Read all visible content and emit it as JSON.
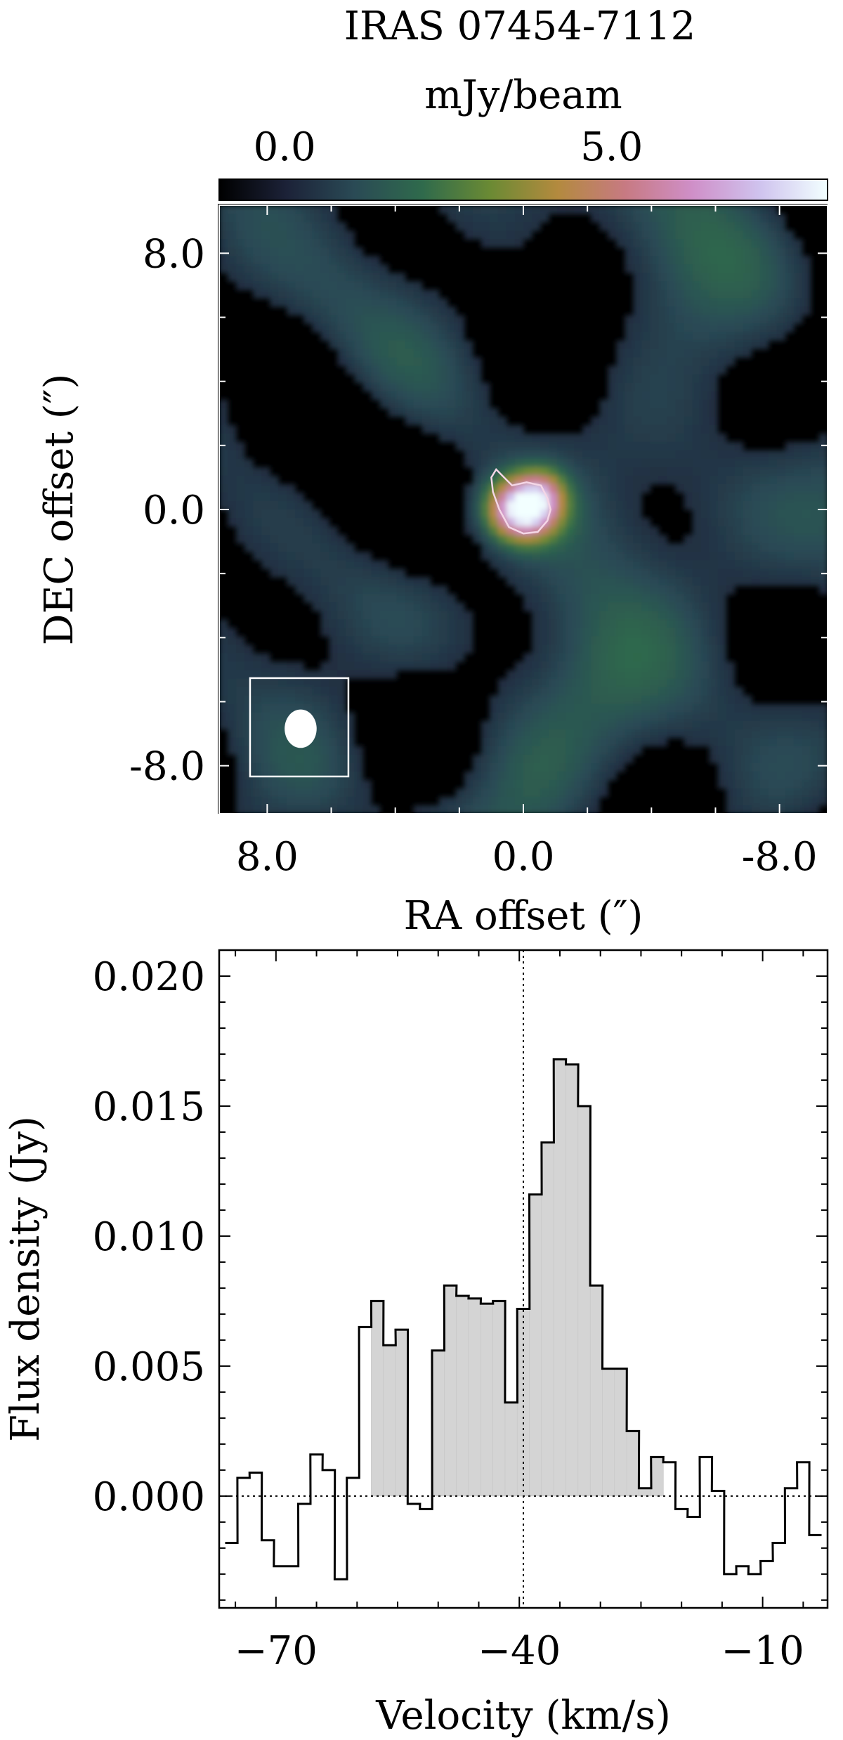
{
  "chart_data": [
    {
      "type": "heatmap",
      "title": "IRAS 07454-7112",
      "colorbar": {
        "label": "mJy/beam",
        "ticks": [
          0.0,
          5.0
        ],
        "tick_labels": [
          "0.0",
          "5.0"
        ],
        "range": [
          -1.0,
          8.3
        ],
        "colors": [
          "#000000",
          "#1c2238",
          "#2a4a55",
          "#2f6a4c",
          "#6a8a34",
          "#b38a3e",
          "#c77a82",
          "#cf8fc8",
          "#cfc3ee",
          "#f2ffff"
        ]
      },
      "xlabel": "RA offset (″)",
      "ylabel": "DEC offset (″)",
      "xlim": [
        9.5,
        -9.5
      ],
      "ylim": [
        -9.5,
        9.5
      ],
      "xticks": [
        8.0,
        0.0,
        -8.0
      ],
      "xtick_labels": [
        "8.0",
        "0.0",
        "-8.0"
      ],
      "yticks": [
        8.0,
        0.0,
        -8.0
      ],
      "ytick_labels": [
        "8.0",
        "0.0",
        "-8.0"
      ],
      "source_peak": {
        "ra": 0.0,
        "dec": 0.0,
        "peak_mJy_per_beam": 8.2
      },
      "contour_level_mJy_per_beam": 3.5,
      "beam": {
        "ra": 7.0,
        "dec": -6.8,
        "major_arcsec": 1.2,
        "minor_arcsec": 1.0
      }
    },
    {
      "type": "area",
      "step": true,
      "xlabel": "Velocity (km/s)",
      "ylabel": "Flux density (Jy)",
      "xlim": [
        -77,
        -2
      ],
      "ylim": [
        -0.0043,
        0.021
      ],
      "xticks": [
        -70,
        -40,
        -10
      ],
      "xtick_labels": [
        "−70",
        "−40",
        "−10"
      ],
      "yticks": [
        0.0,
        0.005,
        0.01,
        0.015,
        0.02
      ],
      "ytick_labels": [
        "0.000",
        "0.005",
        "0.010",
        "0.015",
        "0.020"
      ],
      "reference_lines": {
        "y": 0.0,
        "x": -39.5
      },
      "channel_width": 1.52,
      "x": [
        -75.5,
        -74.0,
        -72.5,
        -71.0,
        -69.5,
        -68.0,
        -66.5,
        -65.0,
        -63.5,
        -62.0,
        -60.5,
        -59.0,
        -57.5,
        -56.0,
        -54.5,
        -53.0,
        -51.5,
        -50.0,
        -48.5,
        -47.0,
        -45.5,
        -44.0,
        -42.5,
        -41.0,
        -39.5,
        -38.0,
        -36.5,
        -35.0,
        -33.5,
        -32.0,
        -30.5,
        -29.0,
        -27.5,
        -26.0,
        -24.5,
        -23.0,
        -21.5,
        -20.0,
        -18.5,
        -17.0,
        -15.5,
        -14.0,
        -12.5,
        -11.0,
        -9.5,
        -8.0,
        -6.5,
        -5.0,
        -3.5
      ],
      "values": [
        -0.0018,
        0.0007,
        0.0009,
        -0.0017,
        -0.0027,
        -0.0027,
        -0.0003,
        0.0016,
        0.001,
        -0.0032,
        0.0007,
        0.0065,
        0.0075,
        0.0058,
        0.0064,
        -0.0003,
        -0.0005,
        0.0056,
        0.0081,
        0.0077,
        0.0076,
        0.0074,
        0.0075,
        0.0036,
        0.0072,
        0.0116,
        0.0136,
        0.0168,
        0.0166,
        0.015,
        0.0081,
        0.0049,
        0.0049,
        0.0025,
        0.0003,
        0.0015,
        0.0013,
        -0.0005,
        -0.0008,
        0.0015,
        0.0002,
        -0.003,
        -0.0027,
        -0.003,
        -0.0025,
        -0.0018,
        0.0003,
        0.0013,
        -0.0015
      ],
      "shaded_range": [
        -58.5,
        -22.5
      ]
    }
  ]
}
